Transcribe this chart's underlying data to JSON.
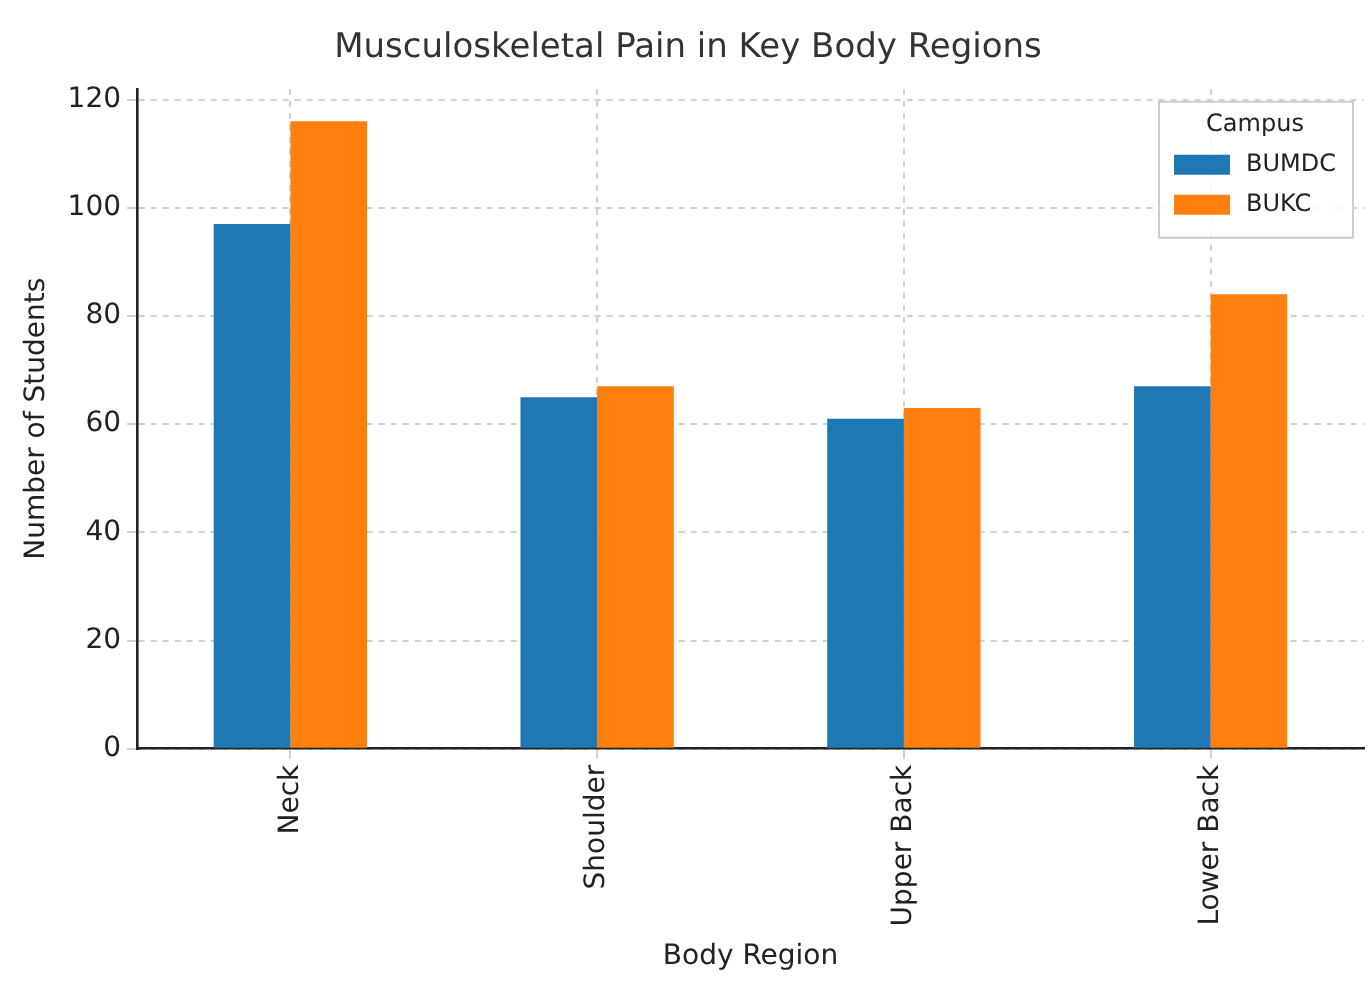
{
  "chart_data": {
    "type": "bar",
    "title": "Musculoskeletal Pain in Key Body Regions",
    "xlabel": "Body Region",
    "ylabel": "Number of Students",
    "legend_title": "Campus",
    "categories": [
      "Neck",
      "Shoulder",
      "Upper Back",
      "Lower Back"
    ],
    "series": [
      {
        "name": "BUMDC",
        "color": "#1f77b4",
        "values": [
          97,
          65,
          61,
          67
        ]
      },
      {
        "name": "BUKC",
        "color": "#ff7f0e",
        "values": [
          116,
          67,
          63,
          84
        ]
      }
    ],
    "ylim": [
      0,
      122
    ],
    "yticks": [
      0,
      20,
      40,
      60,
      80,
      100,
      120
    ],
    "grid": true,
    "legend": "top right"
  }
}
